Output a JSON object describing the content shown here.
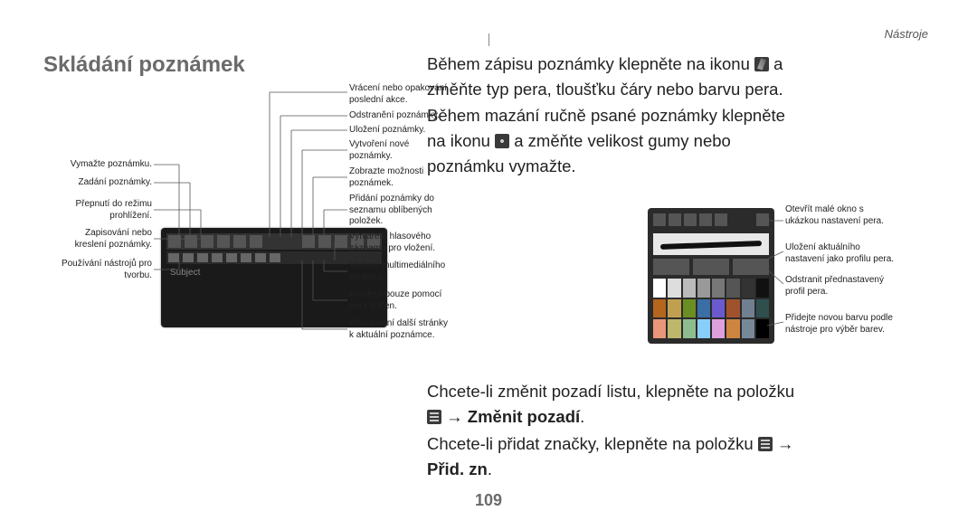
{
  "header": {
    "section": "Nástroje"
  },
  "title": "Skládání poznámek",
  "page_number": "109",
  "left_diagram": {
    "device_subject": "Subject",
    "left_callouts": [
      "Vymažte poznámku.",
      "Zadání poznámky.",
      "Přepnutí do režimu\nprohlížení.",
      "Zapisování nebo\nkreslení poznámky.",
      "Používání nástrojů pro\ntvorbu."
    ],
    "right_callouts": [
      "Vrácení nebo opakování\nposlední akce.",
      "Odstranění poznámky.",
      "Uložení poznámky.",
      "Vytvoření nové\npoznámky.",
      "Zobrazte možnosti\npoznámek.",
      "Přidání poznámky do\nseznamu oblíbených\npoložek.",
      "Vytváření hlasového\nzáznamu pro vložení.",
      "Vložení multimediálního\nsouboru.",
      "Kreslení pouze pomocí\npera S Pen.",
      "Připojování další stránky\nk aktuální poznámce."
    ]
  },
  "right_paragraph": {
    "l1a": "Během zápisu poznámky klepněte na ikonu ",
    "l1b": " a",
    "l2": "změňte typ pera, tloušťku čáry nebo barvu pera.",
    "l3": "Během mazání ručně psané poznámky klepněte",
    "l4a": "na ikonu ",
    "l4b": " a změňte velikost gumy nebo",
    "l5": "poznámku vymažte."
  },
  "pen_panel_callouts": [
    "Otevřít malé okno s\nukázkou nastavení pera.",
    "Uložení aktuálního\nnastavení jako profilu pera.",
    "Odstranit přednastavený\nprofil pera.",
    "Přidejte novou barvu podle\nnástroje pro výběr barev."
  ],
  "swatch_colors": [
    "#ffffff",
    "#dddddd",
    "#bbbbbb",
    "#999999",
    "#777777",
    "#555555",
    "#333333",
    "#111111",
    "#b5651d",
    "#c0a050",
    "#6b8e23",
    "#3a6ea5",
    "#6a5acd",
    "#a0522d",
    "#708090",
    "#2f4f4f",
    "#e9967a",
    "#bdb76b",
    "#8fbc8f",
    "#87cefa",
    "#dda0dd",
    "#cd853f",
    "#778899",
    "#000000"
  ],
  "lower": {
    "para1": "Chcete-li změnit pozadí listu, klepněte na položku",
    "para1_icon_then": " → ",
    "para1_bold": "Změnit pozadí",
    "para1_end": ".",
    "para2a": "Chcete-li přidat značky, klepněte na položku ",
    "para2b": " →",
    "para2_bold": "Přid. zn",
    "para2_end": "."
  }
}
